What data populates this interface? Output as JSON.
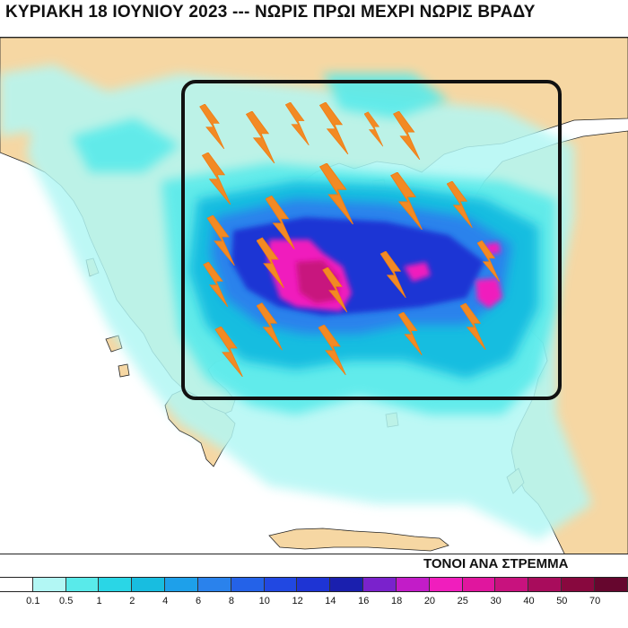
{
  "header": {
    "title": "ΚΥΡΙΑΚΗ 18 ΙΟΥΝΙΟΥ 2023 --- ΝΩΡΙΣ ΠΡΩΙ ΜΕΧΡΙ ΝΩΡΙΣ ΒΡΑΔΥ"
  },
  "legend": {
    "units_label": "ΤΟΝΟΙ ΑΝΑ ΣΤΡΕΜΜΑ",
    "tick_labels": [
      "0.1",
      "0.5",
      "1",
      "2",
      "4",
      "6",
      "8",
      "10",
      "12",
      "14",
      "16",
      "18",
      "20",
      "25",
      "30",
      "40",
      "50",
      "70"
    ],
    "bin_colors": [
      "#ffffff",
      "#b2f7f4",
      "#59eaea",
      "#2ad6e6",
      "#18bde0",
      "#1ea0ea",
      "#2a82ec",
      "#2462e8",
      "#2148e2",
      "#1e34d4",
      "#1a1fae",
      "#7a22cc",
      "#c21cc8",
      "#f01ebd",
      "#e0169e",
      "#c8127e",
      "#a80c5c",
      "#88083e",
      "#66062e"
    ]
  },
  "map": {
    "colors": {
      "land": "#f6d7a3",
      "sea": "#ffffff",
      "coast": "#1a1a1a",
      "box": "#111111",
      "lightning": "#f28a24"
    },
    "lightning_icon": "lightning-bolt-icon",
    "highlight_box": "rounded-rectangle",
    "lightning_count": 22
  }
}
